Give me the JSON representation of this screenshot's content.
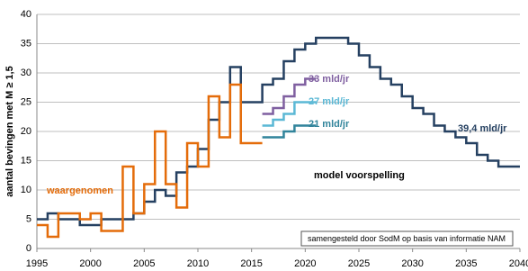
{
  "chart_data": {
    "type": "step",
    "y_label": "aantal bevingen met M ≥ 1,5",
    "xlim": [
      1995,
      2040
    ],
    "xticks": [
      1995,
      2000,
      2005,
      2010,
      2015,
      2020,
      2025,
      2030,
      2035,
      2040
    ],
    "ylim": [
      0,
      40
    ],
    "yticks": [
      0,
      5,
      10,
      15,
      20,
      25,
      30,
      35,
      40
    ],
    "grid": true,
    "annotations": [
      "model voorspelling",
      "samengesteld door SodM op basis van informatie NAM"
    ],
    "series": [
      {
        "name": "39,4 mld/jr",
        "color": "#254061",
        "x": [
          1995,
          1996,
          1997,
          1998,
          1999,
          2000,
          2001,
          2002,
          2003,
          2004,
          2005,
          2006,
          2007,
          2008,
          2009,
          2010,
          2011,
          2012,
          2013,
          2014,
          2015,
          2016,
          2017,
          2018,
          2019,
          2020,
          2021,
          2022,
          2023,
          2024,
          2025,
          2026,
          2027,
          2028,
          2029,
          2030,
          2031,
          2032,
          2033,
          2034,
          2035,
          2036,
          2037,
          2038,
          2039
        ],
        "values": [
          5,
          6,
          5,
          5,
          4,
          4,
          5,
          5,
          5,
          6,
          8,
          10,
          9,
          13,
          14,
          17,
          22,
          25,
          31,
          25,
          25,
          28,
          29,
          32,
          34,
          35,
          36,
          36,
          36,
          35,
          33,
          31,
          29,
          28,
          26,
          24,
          23,
          21,
          20,
          19,
          18,
          16,
          15,
          14,
          14
        ]
      },
      {
        "name": "waargenomen",
        "color": "#e46c0a",
        "x": [
          1995,
          1996,
          1997,
          1998,
          1999,
          2000,
          2001,
          2002,
          2003,
          2004,
          2005,
          2006,
          2007,
          2008,
          2009,
          2010,
          2011,
          2012,
          2013,
          2014,
          2015
        ],
        "values": [
          4,
          2,
          6,
          6,
          5,
          6,
          3,
          3,
          14,
          6,
          11,
          20,
          11,
          7,
          18,
          14,
          26,
          19,
          28,
          18,
          18
        ]
      },
      {
        "name": "33 mld/jr",
        "color": "#7f5fa0",
        "x": [
          2016,
          2017,
          2018,
          2019,
          2020
        ],
        "values": [
          23,
          24,
          26,
          28,
          29
        ]
      },
      {
        "name": "27 mld/jr",
        "color": "#5bb8d5",
        "x": [
          2016,
          2017,
          2018,
          2019,
          2020
        ],
        "values": [
          21,
          22,
          23,
          25,
          25
        ]
      },
      {
        "name": "21 mld/jr",
        "color": "#31849b",
        "x": [
          2016,
          2017,
          2018,
          2019,
          2020
        ],
        "values": [
          19,
          19,
          20,
          21,
          21
        ]
      }
    ]
  }
}
